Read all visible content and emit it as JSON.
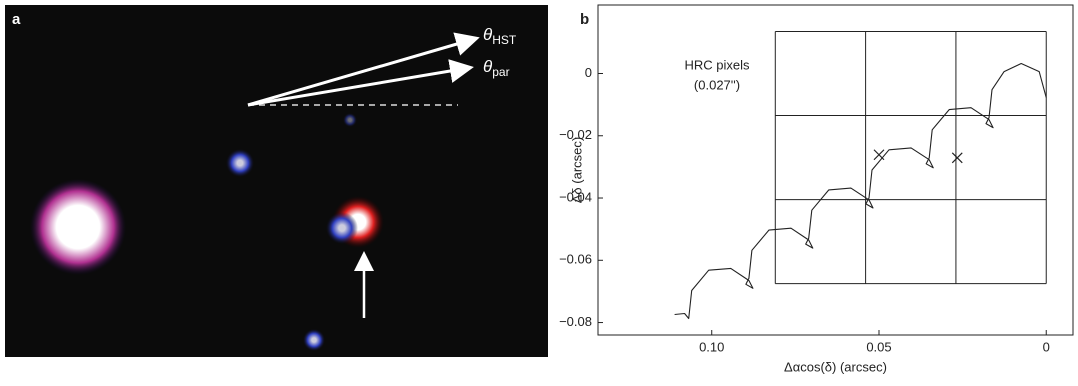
{
  "panel_a": {
    "label": "a",
    "theta_hst": {
      "symbol": "θ",
      "subscript": "HST"
    },
    "theta_par": {
      "symbol": "θ",
      "subscript": "par"
    }
  },
  "chart_data": {
    "type": "line",
    "panel_label": "b",
    "xlabel": "Δαcos(δ) (arcsec)",
    "ylabel": "Δδ (arcsec)",
    "annotation": [
      "HRC pixels",
      "(0.027'')"
    ],
    "xlim": [
      0.134,
      -0.008
    ],
    "ylim": [
      -0.084,
      0.022
    ],
    "xticks": [
      {
        "value": 0.1,
        "label": "0.10"
      },
      0.05,
      0
    ],
    "yticks": [
      0,
      {
        "value": -0.02,
        "label": "−0.02"
      },
      {
        "value": -0.04,
        "label": "−0.04"
      },
      {
        "value": -0.06,
        "label": "−0.06"
      },
      {
        "value": -0.08,
        "label": "−0.08"
      }
    ],
    "color": "#222",
    "x": [
      0.1111,
      0.1081,
      0.1069,
      0.106,
      0.1009,
      0.0943,
      0.0889,
      0.0877,
      0.0898,
      0.0889,
      0.088,
      0.0829,
      0.0763,
      0.071,
      0.0698,
      0.0719,
      0.071,
      0.0701,
      0.065,
      0.0584,
      0.053,
      0.0518,
      0.0539,
      0.053,
      0.0521,
      0.047,
      0.0404,
      0.035,
      0.0338,
      0.0359,
      0.035,
      0.0341,
      0.029,
      0.0225,
      0.0171,
      0.0159,
      0.018,
      0.0171,
      0.0162,
      0.0126,
      0.0075,
      0.0021,
      0
    ],
    "values": [
      -0.0774,
      -0.0771,
      -0.0787,
      -0.0697,
      -0.0632,
      -0.0626,
      -0.0665,
      -0.069,
      -0.0677,
      -0.0658,
      -0.0568,
      -0.0503,
      -0.0497,
      -0.0535,
      -0.0561,
      -0.0548,
      -0.0529,
      -0.0439,
      -0.0374,
      -0.0368,
      -0.0406,
      -0.0432,
      -0.0419,
      -0.04,
      -0.031,
      -0.0245,
      -0.0239,
      -0.0277,
      -0.0303,
      -0.029,
      -0.0271,
      -0.0181,
      -0.0116,
      -0.011,
      -0.0148,
      -0.0174,
      -0.0161,
      -0.0142,
      -0.0052,
      0.0006,
      0.0032,
      0.0006,
      -0.0077
    ],
    "markers": {
      "x": [
        0.05,
        0.0266
      ],
      "y": [
        -0.0261,
        -0.0271
      ]
    },
    "pixel_grid": {
      "x": [
        0.081,
        0.054,
        0.027,
        0
      ],
      "y": [
        0.0135,
        -0.0135,
        -0.0405,
        -0.0675
      ]
    }
  }
}
